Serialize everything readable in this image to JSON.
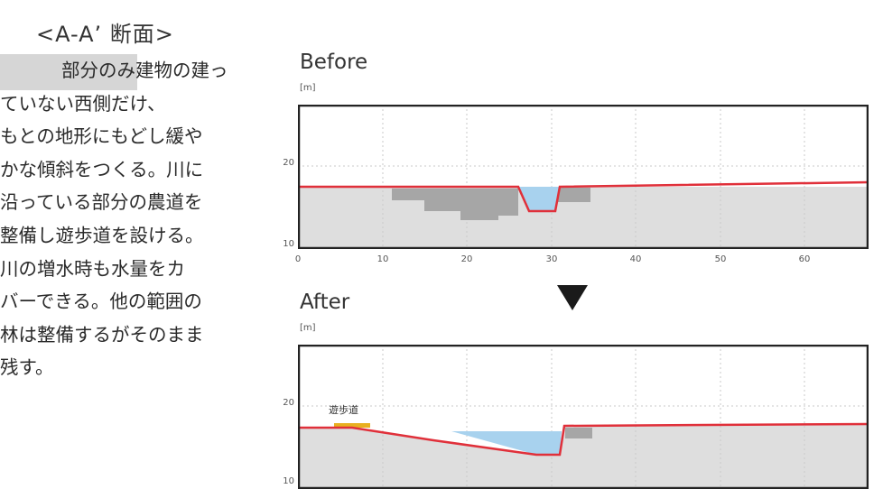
{
  "section_title": "<A-A’ 断面>",
  "description_lines": [
    "部分のみ建物の建っ",
    "ていない西側だけ、",
    "もとの地形にもどし緩や",
    "かな傾斜をつくる。川に",
    "沿っている部分の農道を",
    "整備し遊歩道を設ける。",
    "川の増水時も水量をカ",
    "バーできる。他の範囲の",
    "林は整備するがそのまま",
    "残す。"
  ],
  "before": {
    "label": "Before",
    "unit": "[m]",
    "y_ticks": [
      "20",
      "10"
    ],
    "x_ticks": [
      "0",
      "10",
      "20",
      "30",
      "40",
      "50",
      "60"
    ]
  },
  "after": {
    "label": "After",
    "unit": "[m]",
    "y_ticks": [
      "20",
      "10"
    ],
    "path_label": "遊歩道"
  },
  "colors": {
    "ground_line": "#e0303a",
    "water": "#a8d2ee",
    "ground_fill": "#dedede",
    "structure": "#a6a6a6",
    "promenade": "#e8b020",
    "frame": "#222222"
  }
}
